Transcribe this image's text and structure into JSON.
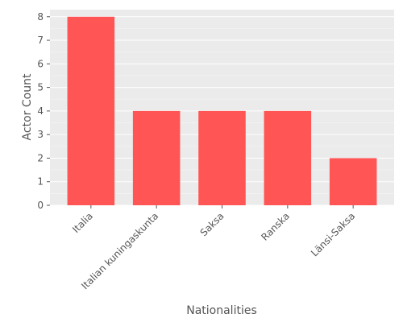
{
  "chart_data": {
    "type": "bar",
    "title": "",
    "xlabel": "Nationalities",
    "ylabel": "Actor Count",
    "categories": [
      "Italia",
      "Italian kuningaskunta",
      "Saksa",
      "Ranska",
      "Länsi-Saksa"
    ],
    "values": [
      8,
      4,
      4,
      4,
      2
    ],
    "ylim": [
      0,
      8.3
    ],
    "yticks": [
      0,
      1,
      2,
      3,
      4,
      5,
      6,
      7,
      8
    ],
    "grid": true,
    "bar_color": "#ff5555",
    "plot_background": "#ebebeb"
  }
}
